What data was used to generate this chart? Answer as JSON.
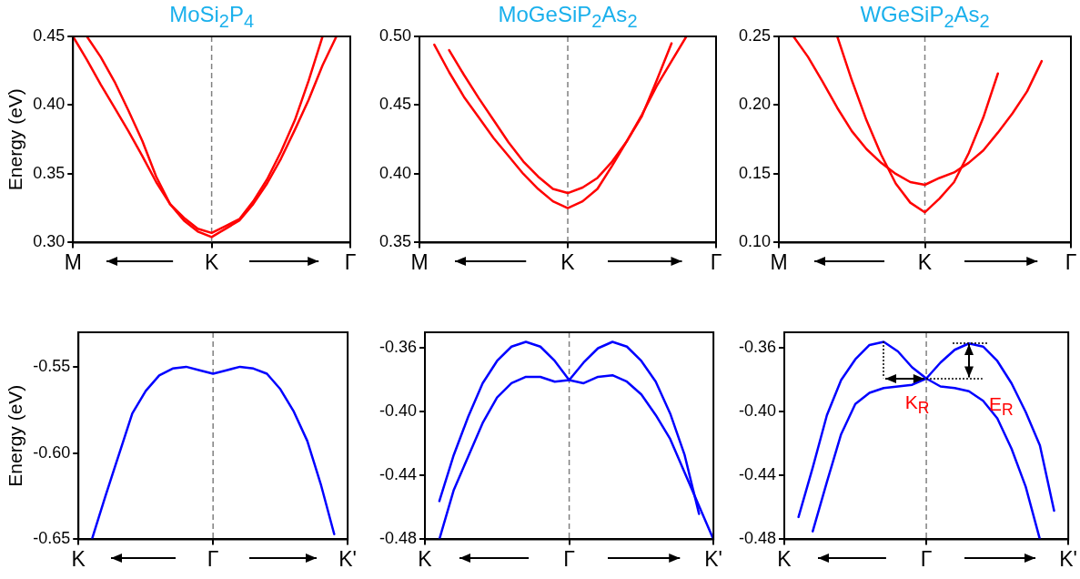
{
  "chart_data": [
    {
      "type": "line",
      "title": "MoSi$_{2}$P$_{4}$",
      "ylabel": "Energy (eV)",
      "categories": [
        "M",
        null,
        null,
        null,
        null,
        null,
        null,
        null,
        null,
        null,
        "K",
        null,
        null,
        null,
        null,
        null,
        null,
        null,
        null,
        null,
        "Γ"
      ],
      "ylim": [
        0.3,
        0.45
      ],
      "yticks": [
        {
          "value": 0.3,
          "label": "0.30"
        },
        0.35,
        {
          "value": 0.4,
          "label": "0.40"
        },
        0.45
      ],
      "ref_lines": [
        {
          "axis": "x",
          "value": "K",
          "color": "#808080",
          "line_style": "dashed"
        }
      ],
      "series": [
        {
          "color": "#ff0000",
          "values": [
            0.45,
            0.433,
            0.415,
            0.398,
            0.381,
            0.363,
            0.344,
            0.328,
            0.316,
            0.308,
            0.304,
            0.31,
            0.316,
            0.328,
            0.343,
            0.361,
            0.382,
            0.404,
            0.429,
            0.45,
            null
          ]
        },
        {
          "color": "#ff0000",
          "values": [
            null,
            0.45,
            0.435,
            0.417,
            0.396,
            0.374,
            0.348,
            0.328,
            0.318,
            0.31,
            0.307,
            0.312,
            0.317,
            0.33,
            0.346,
            0.366,
            0.389,
            0.418,
            0.45,
            null,
            null
          ]
        }
      ]
    },
    {
      "type": "line",
      "title": "MoGeSiP$_{2}$As$_{2}$",
      "categories": [
        "M",
        null,
        null,
        null,
        null,
        null,
        null,
        null,
        null,
        null,
        "K",
        null,
        null,
        null,
        null,
        null,
        null,
        null,
        null,
        null,
        "Γ"
      ],
      "ylim": [
        0.35,
        0.5
      ],
      "yticks": [
        0.35,
        {
          "value": 0.4,
          "label": "0.40"
        },
        0.45,
        {
          "value": 0.5,
          "label": "0.50"
        }
      ],
      "ref_lines": [
        {
          "axis": "x",
          "value": "K",
          "color": "#808080",
          "line_style": "dashed"
        }
      ],
      "series": [
        {
          "color": "#ff0000",
          "values": [
            null,
            0.494,
            0.474,
            0.456,
            0.441,
            0.426,
            0.413,
            0.4,
            0.389,
            0.38,
            0.375,
            0.38,
            0.389,
            0.406,
            0.424,
            0.443,
            0.464,
            0.482,
            0.5,
            null,
            null
          ]
        },
        {
          "color": "#ff0000",
          "values": [
            null,
            null,
            0.49,
            0.472,
            0.455,
            0.439,
            0.423,
            0.409,
            0.398,
            0.389,
            0.386,
            0.39,
            0.397,
            0.409,
            0.424,
            0.442,
            0.468,
            0.495,
            null,
            null,
            null
          ]
        }
      ]
    },
    {
      "type": "line",
      "title": "WGeSiP$_{2}$As$_{2}$",
      "categories": [
        "M",
        null,
        null,
        null,
        null,
        null,
        null,
        null,
        null,
        null,
        "K",
        null,
        null,
        null,
        null,
        null,
        null,
        null,
        null,
        null,
        "Γ"
      ],
      "ylim": [
        0.1,
        0.25
      ],
      "yticks": [
        {
          "value": 0.1,
          "label": "0.10"
        },
        0.15,
        {
          "value": 0.2,
          "label": "0.20"
        },
        0.25
      ],
      "ref_lines": [
        {
          "axis": "x",
          "value": "K",
          "color": "#808080",
          "line_style": "dashed"
        }
      ],
      "series": [
        {
          "color": "#ff0000",
          "values": [
            null,
            0.25,
            0.235,
            0.217,
            0.198,
            0.181,
            0.168,
            0.158,
            0.15,
            0.144,
            0.142,
            0.147,
            0.151,
            0.158,
            0.167,
            0.18,
            0.194,
            0.21,
            0.232,
            null,
            null
          ]
        },
        {
          "color": "#ff0000",
          "values": [
            null,
            null,
            null,
            null,
            0.25,
            0.218,
            0.189,
            0.164,
            0.143,
            0.129,
            0.122,
            0.132,
            0.144,
            0.165,
            0.191,
            0.223,
            null,
            null,
            null,
            null,
            null
          ]
        }
      ]
    },
    {
      "type": "line",
      "ylabel": "Energy (eV)",
      "categories": [
        "K",
        null,
        null,
        null,
        null,
        null,
        null,
        null,
        null,
        null,
        "Γ",
        null,
        null,
        null,
        null,
        null,
        null,
        null,
        null,
        null,
        "K'"
      ],
      "ylim": [
        -0.65,
        -0.53
      ],
      "yticks": [
        -0.65,
        {
          "value": -0.6,
          "label": "-0.60"
        },
        -0.55
      ],
      "ref_lines": [
        {
          "axis": "x",
          "value": "Γ",
          "color": "#808080",
          "line_style": "dashed"
        }
      ],
      "series": [
        {
          "color": "#0000ff",
          "values": [
            null,
            -0.65,
            -0.625,
            -0.601,
            -0.577,
            -0.564,
            -0.555,
            -0.551,
            -0.55,
            -0.552,
            -0.554,
            -0.552,
            -0.55,
            -0.551,
            -0.554,
            -0.563,
            -0.576,
            -0.593,
            -0.618,
            -0.647,
            null
          ]
        }
      ]
    },
    {
      "type": "line",
      "categories": [
        "K",
        null,
        null,
        null,
        null,
        null,
        null,
        null,
        null,
        null,
        "Γ",
        null,
        null,
        null,
        null,
        null,
        null,
        null,
        null,
        null,
        "K'"
      ],
      "ylim": [
        -0.48,
        -0.35
      ],
      "yticks": [
        -0.48,
        -0.44,
        {
          "value": -0.4,
          "label": "-0.40"
        },
        -0.36
      ],
      "ref_lines": [
        {
          "axis": "x",
          "value": "Γ",
          "color": "#808080",
          "line_style": "dashed"
        }
      ],
      "series": [
        {
          "color": "#0000ff",
          "values": [
            null,
            -0.456,
            -0.427,
            -0.403,
            -0.382,
            -0.368,
            -0.359,
            -0.356,
            -0.359,
            -0.368,
            -0.38,
            -0.369,
            -0.36,
            -0.356,
            -0.359,
            -0.368,
            -0.381,
            -0.401,
            -0.427,
            -0.464,
            null
          ]
        },
        {
          "color": "#0000ff",
          "values": [
            null,
            -0.48,
            -0.449,
            -0.428,
            -0.407,
            -0.391,
            -0.382,
            -0.378,
            -0.378,
            -0.381,
            -0.38,
            -0.382,
            -0.378,
            -0.377,
            -0.381,
            -0.389,
            -0.402,
            -0.417,
            -0.438,
            -0.459,
            -0.48
          ]
        }
      ]
    },
    {
      "type": "line",
      "categories": [
        "K",
        null,
        null,
        null,
        null,
        null,
        null,
        null,
        null,
        null,
        "Γ",
        null,
        null,
        null,
        null,
        null,
        null,
        null,
        null,
        null,
        "K'"
      ],
      "ylim": [
        -0.48,
        -0.35
      ],
      "yticks": [
        -0.48,
        -0.44,
        {
          "value": -0.4,
          "label": "-0.40"
        },
        -0.36
      ],
      "ref_lines": [
        {
          "axis": "x",
          "value": "Γ",
          "color": "#808080",
          "line_style": "dashed"
        }
      ],
      "annotations": [
        {
          "text": "K$_{R}$",
          "y": -0.379
        },
        {
          "text": "E$_{R}$",
          "y": -0.368
        }
      ],
      "series": [
        {
          "color": "#0000ff",
          "values": [
            null,
            -0.466,
            -0.435,
            -0.402,
            -0.38,
            -0.367,
            -0.358,
            -0.356,
            -0.362,
            -0.372,
            -0.379,
            -0.369,
            -0.361,
            -0.357,
            -0.359,
            -0.368,
            -0.382,
            -0.4,
            -0.421,
            -0.462,
            null
          ]
        },
        {
          "color": "#0000ff",
          "values": [
            null,
            null,
            -0.475,
            -0.444,
            -0.414,
            -0.395,
            -0.388,
            -0.385,
            -0.384,
            -0.383,
            -0.379,
            -0.384,
            -0.385,
            -0.387,
            -0.393,
            -0.404,
            -0.423,
            -0.447,
            -0.48,
            null,
            null
          ]
        }
      ]
    }
  ]
}
